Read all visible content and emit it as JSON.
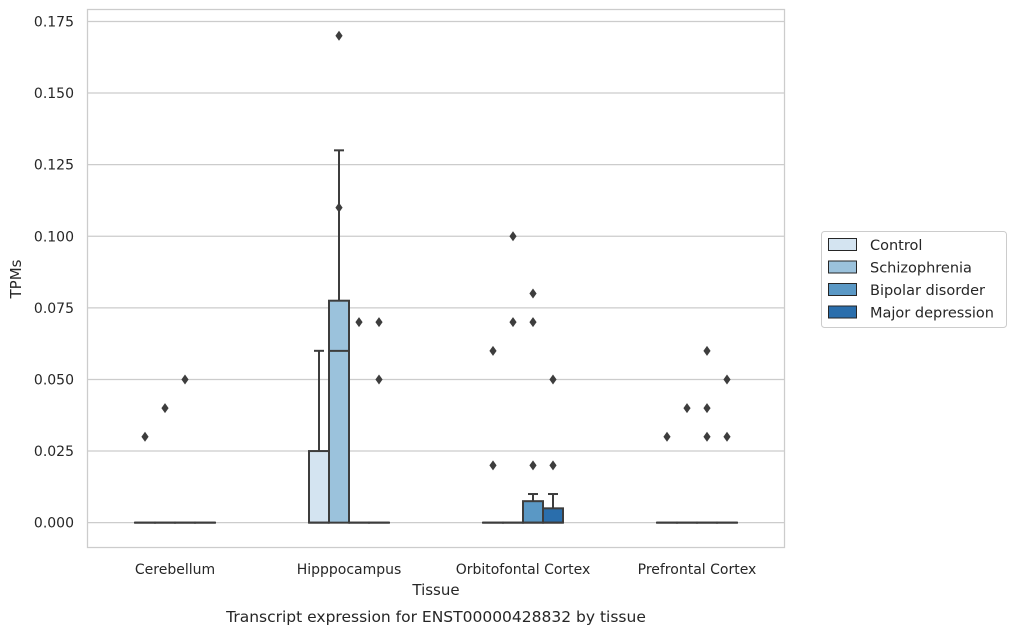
{
  "chart_data": {
    "type": "box",
    "title": "",
    "caption": "Transcript expression for ENST00000428832 by tissue",
    "xlabel": "Tissue",
    "ylabel": "TPMs",
    "ylim": [
      -0.0085,
      0.179
    ],
    "yticks": [
      "0.000",
      "0.025",
      "0.050",
      "0.075",
      "0.100",
      "0.125",
      "0.150",
      "0.175"
    ],
    "grid": "horizontal",
    "legend_position": "right",
    "categories": [
      "Cerebellum",
      "Hipppocampus",
      "Orbitofontal Cortex",
      "Prefrontal Cortex"
    ],
    "series": [
      {
        "name": "Control",
        "color": "#d4e4f1",
        "boxes": [
          {
            "q1": 0,
            "median": 0,
            "q3": 0,
            "whisker_low": 0,
            "whisker_high": 0,
            "outliers": [
              0.03
            ]
          },
          {
            "q1": 0,
            "median": 0,
            "q3": 0.025,
            "whisker_low": 0,
            "whisker_high": 0.06,
            "outliers": []
          },
          {
            "q1": 0,
            "median": 0,
            "q3": 0,
            "whisker_low": 0,
            "whisker_high": 0,
            "outliers": [
              0.02,
              0.06
            ]
          },
          {
            "q1": 0,
            "median": 0,
            "q3": 0,
            "whisker_low": 0,
            "whisker_high": 0,
            "outliers": [
              0.03
            ]
          }
        ]
      },
      {
        "name": "Schizophrenia",
        "color": "#9bc2dc",
        "boxes": [
          {
            "q1": 0,
            "median": 0,
            "q3": 0,
            "whisker_low": 0,
            "whisker_high": 0,
            "outliers": [
              0.04
            ]
          },
          {
            "q1": 0,
            "median": 0.06,
            "q3": 0.0775,
            "whisker_low": 0,
            "whisker_high": 0.13,
            "outliers": [
              0.11,
              0.17
            ]
          },
          {
            "q1": 0,
            "median": 0,
            "q3": 0,
            "whisker_low": 0,
            "whisker_high": 0,
            "outliers": [
              0.07,
              0.1
            ]
          },
          {
            "q1": 0,
            "median": 0,
            "q3": 0,
            "whisker_low": 0,
            "whisker_high": 0,
            "outliers": [
              0.04
            ]
          }
        ]
      },
      {
        "name": "Bipolar disorder",
        "color": "#5a98c5",
        "boxes": [
          {
            "q1": 0,
            "median": 0,
            "q3": 0,
            "whisker_low": 0,
            "whisker_high": 0,
            "outliers": [
              0.05
            ]
          },
          {
            "q1": 0,
            "median": 0,
            "q3": 0,
            "whisker_low": 0,
            "whisker_high": 0,
            "outliers": [
              0.07
            ]
          },
          {
            "q1": 0,
            "median": 0,
            "q3": 0.0075,
            "whisker_low": 0,
            "whisker_high": 0.01,
            "outliers": [
              0.02,
              0.07,
              0.08
            ]
          },
          {
            "q1": 0,
            "median": 0,
            "q3": 0,
            "whisker_low": 0,
            "whisker_high": 0,
            "outliers": [
              0.03,
              0.04,
              0.06
            ]
          }
        ]
      },
      {
        "name": "Major depression",
        "color": "#2a6eac",
        "boxes": [
          {
            "q1": 0,
            "median": 0,
            "q3": 0,
            "whisker_low": 0,
            "whisker_high": 0,
            "outliers": []
          },
          {
            "q1": 0,
            "median": 0,
            "q3": 0,
            "whisker_low": 0,
            "whisker_high": 0,
            "outliers": [
              0.05,
              0.07
            ]
          },
          {
            "q1": 0,
            "median": 0,
            "q3": 0.005,
            "whisker_low": 0,
            "whisker_high": 0.01,
            "outliers": [
              0.02,
              0.05
            ]
          },
          {
            "q1": 0,
            "median": 0,
            "q3": 0,
            "whisker_low": 0,
            "whisker_high": 0,
            "outliers": [
              0.03,
              0.05
            ]
          }
        ]
      }
    ]
  }
}
